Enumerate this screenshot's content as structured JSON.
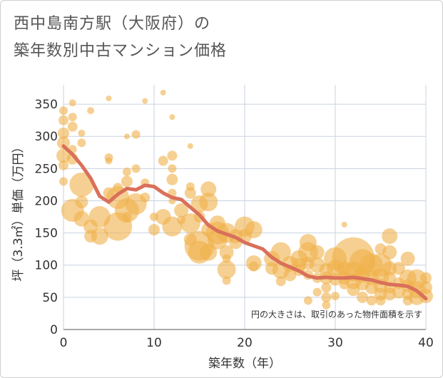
{
  "chart_data": {
    "type": "scatter",
    "title": [
      "西中島南方駅（大阪府）の",
      "築年数別中古マンション価格"
    ],
    "xlabel": "築年数（年）",
    "ylabel": "坪（3.3㎡）単価（万円）",
    "xlim": [
      0,
      40
    ],
    "ylim": [
      0,
      380
    ],
    "xticks": [
      0,
      10,
      20,
      30,
      40
    ],
    "yticks": [
      0,
      50,
      100,
      150,
      200,
      250,
      300,
      350
    ],
    "grid": true,
    "note": "円の大きさは、取引のあった物件面積を示す",
    "colors": {
      "bubble": "#f0b049",
      "line": "#d9705a",
      "grid": "#c9d2e0"
    },
    "series": [
      {
        "kind": "scatter",
        "points": [
          [
            0,
            340,
            6
          ],
          [
            0,
            325,
            7
          ],
          [
            0,
            305,
            8
          ],
          [
            0,
            290,
            9
          ],
          [
            0,
            270,
            10
          ],
          [
            0,
            255,
            7
          ],
          [
            0,
            230,
            6
          ],
          [
            1,
            352,
            5
          ],
          [
            1,
            330,
            6
          ],
          [
            1,
            315,
            7
          ],
          [
            1,
            280,
            6
          ],
          [
            1,
            265,
            8
          ],
          [
            1,
            185,
            16
          ],
          [
            2,
            305,
            5
          ],
          [
            2,
            290,
            6
          ],
          [
            2,
            225,
            17
          ],
          [
            2,
            198,
            9
          ],
          [
            2,
            172,
            11
          ],
          [
            3,
            340,
            5
          ],
          [
            3,
            160,
            10
          ],
          [
            3,
            145,
            9
          ],
          [
            4,
            175,
            15
          ],
          [
            4,
            145,
            12
          ],
          [
            5,
            359,
            4
          ],
          [
            5,
            267,
            6
          ],
          [
            5,
            262,
            5
          ],
          [
            5,
            212,
            8
          ],
          [
            6,
            205,
            16
          ],
          [
            6,
            160,
            20
          ],
          [
            6,
            220,
            7
          ],
          [
            7,
            300,
            4
          ],
          [
            7,
            245,
            6
          ],
          [
            7,
            230,
            8
          ],
          [
            7,
            185,
            17
          ],
          [
            7,
            175,
            7
          ],
          [
            8,
            303,
            6
          ],
          [
            8,
            250,
            6
          ],
          [
            8,
            195,
            15
          ],
          [
            9,
            355,
            4
          ],
          [
            9,
            228,
            6
          ],
          [
            9,
            205,
            7
          ],
          [
            10,
            175,
            6
          ],
          [
            10,
            155,
            8
          ],
          [
            11,
            368,
            4
          ],
          [
            11,
            262,
            7
          ],
          [
            11,
            175,
            11
          ],
          [
            12,
            330,
            4
          ],
          [
            12,
            270,
            7
          ],
          [
            12,
            250,
            6
          ],
          [
            12,
            233,
            8
          ],
          [
            12,
            212,
            6
          ],
          [
            12,
            200,
            5
          ],
          [
            12,
            160,
            14
          ],
          [
            13,
            185,
            10
          ],
          [
            13,
            170,
            6
          ],
          [
            14,
            285,
            4
          ],
          [
            14,
            222,
            6
          ],
          [
            14,
            212,
            8
          ],
          [
            14,
            165,
            14
          ],
          [
            14,
            140,
            9
          ],
          [
            15,
            195,
            12
          ],
          [
            15,
            130,
            21
          ],
          [
            15,
            120,
            16
          ],
          [
            15,
            175,
            8
          ],
          [
            16,
            218,
            11
          ],
          [
            16,
            198,
            13
          ],
          [
            16,
            155,
            10
          ],
          [
            16,
            120,
            12
          ],
          [
            17,
            165,
            11
          ],
          [
            17,
            150,
            16
          ],
          [
            17,
            140,
            14
          ],
          [
            18,
            150,
            14
          ],
          [
            18,
            120,
            10
          ],
          [
            18,
            110,
            6
          ],
          [
            18,
            93,
            13
          ],
          [
            18,
            76,
            6
          ],
          [
            19,
            145,
            10
          ],
          [
            19,
            135,
            9
          ],
          [
            20,
            160,
            14
          ],
          [
            20,
            145,
            10
          ],
          [
            21,
            155,
            12
          ],
          [
            21,
            103,
            11
          ],
          [
            21,
            98,
            7
          ],
          [
            23,
            110,
            11
          ],
          [
            23,
            95,
            9
          ],
          [
            24,
            120,
            14
          ],
          [
            24,
            92,
            12
          ],
          [
            24,
            75,
            7
          ],
          [
            25,
            102,
            11
          ],
          [
            25,
            85,
            9
          ],
          [
            26,
            110,
            12
          ],
          [
            26,
            100,
            10
          ],
          [
            26,
            92,
            8
          ],
          [
            27,
            135,
            12
          ],
          [
            27,
            120,
            14
          ],
          [
            27,
            103,
            9
          ],
          [
            27,
            85,
            7
          ],
          [
            27,
            45,
            6
          ],
          [
            28,
            120,
            10
          ],
          [
            28,
            100,
            11
          ],
          [
            28,
            80,
            7
          ],
          [
            28,
            58,
            6
          ],
          [
            29,
            92,
            10
          ],
          [
            29,
            80,
            9
          ],
          [
            29,
            65,
            7
          ],
          [
            29,
            50,
            7
          ],
          [
            29,
            38,
            6
          ],
          [
            30,
            110,
            16
          ],
          [
            30,
            95,
            12
          ],
          [
            30,
            78,
            9
          ],
          [
            30,
            52,
            6
          ],
          [
            31,
            163,
            4
          ],
          [
            31,
            95,
            10
          ],
          [
            31,
            80,
            9
          ],
          [
            31,
            70,
            7
          ],
          [
            32,
            110,
            30
          ],
          [
            32,
            90,
            14
          ],
          [
            32,
            75,
            11
          ],
          [
            32,
            62,
            9
          ],
          [
            33,
            105,
            18
          ],
          [
            33,
            85,
            11
          ],
          [
            33,
            72,
            10
          ],
          [
            33,
            50,
            8
          ],
          [
            34,
            100,
            16
          ],
          [
            34,
            80,
            10
          ],
          [
            34,
            65,
            9
          ],
          [
            34,
            45,
            7
          ],
          [
            35,
            125,
            8
          ],
          [
            35,
            100,
            16
          ],
          [
            35,
            82,
            12
          ],
          [
            35,
            68,
            10
          ],
          [
            35,
            55,
            9
          ],
          [
            35,
            45,
            7
          ],
          [
            36,
            145,
            11
          ],
          [
            36,
            120,
            10
          ],
          [
            36,
            95,
            10
          ],
          [
            36,
            80,
            9
          ],
          [
            36,
            65,
            8
          ],
          [
            36,
            55,
            9
          ],
          [
            37,
            95,
            9
          ],
          [
            37,
            72,
            8
          ],
          [
            37,
            58,
            9
          ],
          [
            38,
            110,
            10
          ],
          [
            38,
            80,
            12
          ],
          [
            38,
            68,
            9
          ],
          [
            38,
            55,
            8
          ],
          [
            38,
            45,
            7
          ],
          [
            39,
            78,
            14
          ],
          [
            39,
            62,
            12
          ],
          [
            39,
            50,
            11
          ],
          [
            40,
            80,
            8
          ],
          [
            40,
            65,
            9
          ],
          [
            40,
            52,
            10
          ]
        ]
      },
      {
        "kind": "line",
        "x": [
          0,
          1,
          2,
          3,
          4,
          5,
          6,
          7,
          8,
          9,
          10,
          11,
          12,
          13,
          14,
          15,
          16,
          17,
          18,
          19,
          20,
          21,
          22,
          23,
          24,
          25,
          26,
          27,
          28,
          29,
          30,
          31,
          32,
          33,
          34,
          35,
          36,
          37,
          38,
          39,
          40
        ],
        "y": [
          285,
          272,
          255,
          235,
          207,
          198,
          210,
          219,
          217,
          224,
          222,
          212,
          205,
          202,
          190,
          178,
          162,
          153,
          148,
          143,
          135,
          130,
          125,
          112,
          103,
          97,
          91,
          83,
          80,
          81,
          80,
          80,
          81,
          79,
          77,
          73,
          70,
          69,
          67,
          60,
          48
        ]
      }
    ]
  }
}
